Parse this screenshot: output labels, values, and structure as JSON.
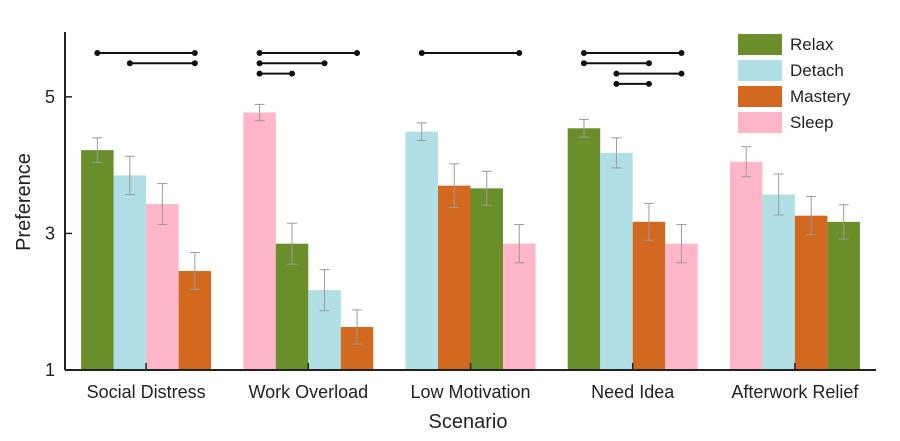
{
  "chart_data": {
    "type": "bar",
    "title": "",
    "xlabel": "Scenario",
    "ylabel": "Preference",
    "ylim": [
      1,
      5.95
    ],
    "yticks": [
      "1",
      "3",
      "5"
    ],
    "grid": false,
    "legend_position": "top-right",
    "series_info": [
      {
        "name": "Relax",
        "color": "#6a8e2a"
      },
      {
        "name": "Detach",
        "color": "#b0e0e6"
      },
      {
        "name": "Mastery",
        "color": "#d2691e"
      },
      {
        "name": "Sleep",
        "color": "#ffb6c8"
      }
    ],
    "groups": [
      {
        "category": "Social Distress",
        "bars": [
          {
            "series": "Relax",
            "value": 4.22,
            "err": 0.18
          },
          {
            "series": "Detach",
            "value": 3.85,
            "err": 0.28
          },
          {
            "series": "Sleep",
            "value": 3.43,
            "err": 0.3
          },
          {
            "series": "Mastery",
            "value": 2.45,
            "err": 0.27
          }
        ],
        "significance": [
          [
            0,
            3
          ],
          [
            1,
            3
          ]
        ]
      },
      {
        "category": "Work Overload",
        "bars": [
          {
            "series": "Sleep",
            "value": 4.77,
            "err": 0.12
          },
          {
            "series": "Relax",
            "value": 2.85,
            "err": 0.3
          },
          {
            "series": "Detach",
            "value": 2.17,
            "err": 0.3
          },
          {
            "series": "Mastery",
            "value": 1.63,
            "err": 0.25
          }
        ],
        "significance": [
          [
            0,
            3
          ],
          [
            0,
            2
          ],
          [
            0,
            1
          ]
        ]
      },
      {
        "category": "Low Motivation",
        "bars": [
          {
            "series": "Detach",
            "value": 4.49,
            "err": 0.13
          },
          {
            "series": "Mastery",
            "value": 3.7,
            "err": 0.32
          },
          {
            "series": "Relax",
            "value": 3.66,
            "err": 0.25
          },
          {
            "series": "Sleep",
            "value": 2.85,
            "err": 0.28
          }
        ],
        "significance": [
          [
            0,
            3
          ]
        ]
      },
      {
        "category": "Need Idea",
        "bars": [
          {
            "series": "Relax",
            "value": 4.54,
            "err": 0.13
          },
          {
            "series": "Detach",
            "value": 4.18,
            "err": 0.22
          },
          {
            "series": "Mastery",
            "value": 3.17,
            "err": 0.27
          },
          {
            "series": "Sleep",
            "value": 2.85,
            "err": 0.28
          }
        ],
        "significance": [
          [
            0,
            3
          ],
          [
            0,
            2
          ],
          [
            1,
            3
          ],
          [
            1,
            2
          ]
        ]
      },
      {
        "category": "Afterwork Relief",
        "bars": [
          {
            "series": "Sleep",
            "value": 4.05,
            "err": 0.22
          },
          {
            "series": "Detach",
            "value": 3.57,
            "err": 0.3
          },
          {
            "series": "Mastery",
            "value": 3.26,
            "err": 0.28
          },
          {
            "series": "Relax",
            "value": 3.17,
            "err": 0.25
          }
        ],
        "significance": []
      }
    ]
  }
}
